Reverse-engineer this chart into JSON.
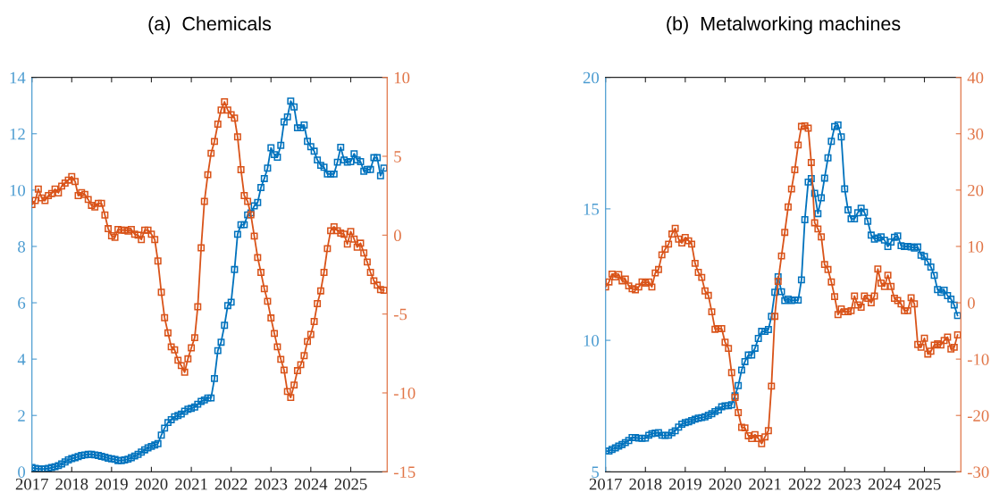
{
  "chart_data": [
    {
      "type": "line",
      "title": "(a)  Chemicals",
      "marker": "square",
      "line_style": "solid",
      "x": [
        "2017-01",
        "2017-02",
        "2017-03",
        "2017-04",
        "2017-05",
        "2017-06",
        "2017-07",
        "2017-08",
        "2017-09",
        "2017-10",
        "2017-11",
        "2017-12",
        "2018-01",
        "2018-02",
        "2018-03",
        "2018-04",
        "2018-05",
        "2018-06",
        "2018-07",
        "2018-08",
        "2018-09",
        "2018-10",
        "2018-11",
        "2018-12",
        "2019-01",
        "2019-02",
        "2019-03",
        "2019-04",
        "2019-05",
        "2019-06",
        "2019-07",
        "2019-08",
        "2019-09",
        "2019-10",
        "2019-11",
        "2019-12",
        "2020-01",
        "2020-02",
        "2020-03",
        "2020-04",
        "2020-05",
        "2020-06",
        "2020-07",
        "2020-08",
        "2020-09",
        "2020-10",
        "2020-11",
        "2020-12",
        "2021-01",
        "2021-02",
        "2021-03",
        "2021-04",
        "2021-05",
        "2021-06",
        "2021-07",
        "2021-08",
        "2021-09",
        "2021-10",
        "2021-11",
        "2021-12",
        "2022-01",
        "2022-02",
        "2022-03",
        "2022-04",
        "2022-05",
        "2022-06",
        "2022-07",
        "2022-08",
        "2022-09",
        "2022-10",
        "2022-11",
        "2022-12",
        "2023-01",
        "2023-02",
        "2023-03",
        "2023-04",
        "2023-05",
        "2023-06",
        "2023-07",
        "2023-08",
        "2023-09",
        "2023-10",
        "2023-11",
        "2023-12",
        "2024-01",
        "2024-02",
        "2024-03",
        "2024-04",
        "2024-05",
        "2024-06",
        "2024-07",
        "2024-08",
        "2024-09",
        "2024-10",
        "2024-11",
        "2024-12",
        "2025-01",
        "2025-02",
        "2025-03",
        "2025-04",
        "2025-05",
        "2025-06",
        "2025-07",
        "2025-08",
        "2025-09",
        "2025-10",
        "2025-11"
      ],
      "xlim": [
        "2017-01",
        "2025-12"
      ],
      "xticks": [
        "2017",
        "2018",
        "2019",
        "2020",
        "2021",
        "2022",
        "2023",
        "2024",
        "2025"
      ],
      "ylim": [
        0,
        14
      ],
      "yticks": [
        0,
        2,
        4,
        6,
        8,
        10,
        12,
        14
      ],
      "y2lim": [
        -15,
        10
      ],
      "y2ticks": [
        -15,
        -10,
        -5,
        0,
        5,
        10
      ],
      "series": [
        {
          "color": "#0072bd",
          "values": [
            0.15,
            0.12,
            0.1,
            0.1,
            0.1,
            0.12,
            0.15,
            0.18,
            0.22,
            0.28,
            0.35,
            0.42,
            0.47,
            0.5,
            0.54,
            0.58,
            0.6,
            0.62,
            0.62,
            0.6,
            0.58,
            0.55,
            0.52,
            0.48,
            0.46,
            0.44,
            0.4,
            0.4,
            0.42,
            0.45,
            0.5,
            0.56,
            0.62,
            0.7,
            0.78,
            0.85,
            0.9,
            0.95,
            1.0,
            1.3,
            1.55,
            1.75,
            1.85,
            1.95,
            2.0,
            2.05,
            2.15,
            2.22,
            2.25,
            2.3,
            2.4,
            2.5,
            2.55,
            2.62,
            2.62,
            3.31,
            4.3,
            4.6,
            5.2,
            5.9,
            6.02,
            7.18,
            8.43,
            8.77,
            8.77,
            9.12,
            9.19,
            9.44,
            9.56,
            10.09,
            10.41,
            10.78,
            11.5,
            11.26,
            11.17,
            11.59,
            12.42,
            12.6,
            13.16,
            12.95,
            12.21,
            12.21,
            12.31,
            11.73,
            11.54,
            11.38,
            11.07,
            10.88,
            10.81,
            10.57,
            10.57,
            10.57,
            10.99,
            11.52,
            11.07,
            10.99,
            11.01,
            11.29,
            11.07,
            11.01,
            10.67,
            10.73,
            10.73,
            11.15,
            11.15,
            10.51,
            10.78
          ]
        },
        {
          "color": "#d95319",
          "axis": "y2",
          "values": [
            1.94,
            2.2,
            2.92,
            2.36,
            2.2,
            2.51,
            2.64,
            2.92,
            2.68,
            3.11,
            3.3,
            3.49,
            3.71,
            3.4,
            2.51,
            2.7,
            2.58,
            2.26,
            1.89,
            1.79,
            2.02,
            2.02,
            1.28,
            0.41,
            -0.04,
            -0.14,
            0.36,
            0.32,
            0.32,
            0.25,
            0.36,
            0.06,
            0.0,
            -0.28,
            0.32,
            0.32,
            0.06,
            -0.28,
            -1.64,
            -3.62,
            -5.23,
            -6.19,
            -7.08,
            -7.27,
            -7.93,
            -8.27,
            -8.69,
            -7.84,
            -7.14,
            -6.5,
            -4.54,
            -0.8,
            2.14,
            3.83,
            5.19,
            5.94,
            7.04,
            7.93,
            8.45,
            7.93,
            7.64,
            7.42,
            6.23,
            4.15,
            2.51,
            2.14,
            1.29,
            -0.06,
            -1.42,
            -2.36,
            -3.4,
            -4.19,
            -5.25,
            -6.23,
            -7.08,
            -7.87,
            -8.55,
            -9.91,
            -10.29,
            -9.5,
            -8.59,
            -8.21,
            -7.64,
            -6.74,
            -6.29,
            -5.47,
            -4.34,
            -3.53,
            -2.36,
            -0.85,
            0.28,
            0.53,
            0.28,
            0.13,
            0.06,
            -0.57,
            0.23,
            -0.25,
            -0.76,
            -0.51,
            -1.13,
            -1.7,
            -2.36,
            -2.89,
            -3.17,
            -3.45,
            -3.49
          ]
        }
      ]
    },
    {
      "type": "line",
      "title": "(b)  Metalworking machines",
      "marker": "square",
      "line_style": "solid",
      "x": [
        "2017-01",
        "2017-02",
        "2017-03",
        "2017-04",
        "2017-05",
        "2017-06",
        "2017-07",
        "2017-08",
        "2017-09",
        "2017-10",
        "2017-11",
        "2017-12",
        "2018-01",
        "2018-02",
        "2018-03",
        "2018-04",
        "2018-05",
        "2018-06",
        "2018-07",
        "2018-08",
        "2018-09",
        "2018-10",
        "2018-11",
        "2018-12",
        "2019-01",
        "2019-02",
        "2019-03",
        "2019-04",
        "2019-05",
        "2019-06",
        "2019-07",
        "2019-08",
        "2019-09",
        "2019-10",
        "2019-11",
        "2019-12",
        "2020-01",
        "2020-02",
        "2020-03",
        "2020-04",
        "2020-05",
        "2020-06",
        "2020-07",
        "2020-08",
        "2020-09",
        "2020-10",
        "2020-11",
        "2020-12",
        "2021-01",
        "2021-02",
        "2021-03",
        "2021-04",
        "2021-05",
        "2021-06",
        "2021-07",
        "2021-08",
        "2021-09",
        "2021-10",
        "2021-11",
        "2021-12",
        "2022-01",
        "2022-02",
        "2022-03",
        "2022-04",
        "2022-05",
        "2022-06",
        "2022-07",
        "2022-08",
        "2022-09",
        "2022-10",
        "2022-11",
        "2022-12",
        "2023-01",
        "2023-02",
        "2023-03",
        "2023-04",
        "2023-05",
        "2023-06",
        "2023-07",
        "2023-08",
        "2023-09",
        "2023-10",
        "2023-11",
        "2023-12",
        "2024-01",
        "2024-02",
        "2024-03",
        "2024-04",
        "2024-05",
        "2024-06",
        "2024-07",
        "2024-08",
        "2024-09",
        "2024-10",
        "2024-11",
        "2024-12",
        "2025-01",
        "2025-02",
        "2025-03",
        "2025-04",
        "2025-05",
        "2025-06",
        "2025-07",
        "2025-08",
        "2025-09",
        "2025-10",
        "2025-11"
      ],
      "xlim": [
        "2017-01",
        "2025-12"
      ],
      "xticks": [
        "2017",
        "2018",
        "2019",
        "2020",
        "2021",
        "2022",
        "2023",
        "2024",
        "2025"
      ],
      "ylim": [
        5,
        20
      ],
      "yticks": [
        5,
        10,
        15,
        20
      ],
      "y2lim": [
        -30,
        40
      ],
      "y2ticks": [
        -30,
        -20,
        -10,
        0,
        10,
        20,
        30,
        40
      ],
      "series": [
        {
          "color": "#0072bd",
          "values": [
            5.79,
            5.79,
            5.85,
            5.91,
            5.98,
            6.04,
            6.11,
            6.19,
            6.3,
            6.3,
            6.28,
            6.27,
            6.28,
            6.39,
            6.45,
            6.47,
            6.49,
            6.39,
            6.38,
            6.39,
            6.49,
            6.56,
            6.7,
            6.81,
            6.87,
            6.9,
            6.95,
            7.0,
            7.04,
            7.06,
            7.09,
            7.15,
            7.21,
            7.29,
            7.35,
            7.47,
            7.51,
            7.51,
            7.55,
            7.89,
            8.28,
            8.87,
            9.19,
            9.44,
            9.44,
            9.7,
            10.07,
            10.34,
            10.34,
            10.41,
            10.91,
            11.83,
            12.42,
            11.85,
            11.51,
            11.57,
            11.51,
            11.53,
            11.53,
            12.3,
            14.59,
            16.02,
            16.15,
            15.59,
            14.82,
            15.42,
            16.17,
            16.94,
            17.57,
            18.13,
            18.19,
            17.74,
            15.76,
            14.96,
            14.62,
            14.62,
            14.85,
            15.02,
            14.87,
            14.53,
            14.0,
            13.85,
            13.89,
            13.94,
            13.81,
            13.57,
            13.74,
            13.92,
            13.97,
            13.6,
            13.57,
            13.57,
            13.55,
            13.51,
            13.55,
            13.24,
            13.19,
            12.98,
            12.79,
            12.47,
            11.93,
            11.83,
            11.91,
            11.7,
            11.57,
            11.34,
            10.94
          ]
        },
        {
          "color": "#d95319",
          "axis": "y2",
          "values": [
            2.8,
            3.7,
            5.1,
            4.6,
            5.0,
            3.9,
            4.2,
            3.0,
            2.5,
            2.3,
            2.8,
            3.7,
            3.5,
            3.7,
            2.8,
            5.3,
            5.9,
            8.5,
            9.5,
            10.4,
            12.2,
            13.2,
            11.3,
            10.6,
            11.6,
            11.0,
            10.4,
            7.0,
            5.4,
            4.5,
            2.1,
            1.3,
            -1.6,
            -4.7,
            -4.6,
            -4.6,
            -7.0,
            -8.1,
            -12.4,
            -16.8,
            -19.5,
            -22.1,
            -22.2,
            -23.6,
            -24.1,
            -23.4,
            -24.1,
            -25.0,
            -23.8,
            -22.7,
            -14.8,
            -2.4,
            3.8,
            8.3,
            12.5,
            17.0,
            20.2,
            23.6,
            28.0,
            31.3,
            31.4,
            31.0,
            24.9,
            14.2,
            13.1,
            11.7,
            6.8,
            5.9,
            3.7,
            1.1,
            -2.1,
            -1.1,
            -1.6,
            -1.6,
            -1.4,
            1.2,
            -0.4,
            -0.8,
            1.2,
            0.8,
            0.0,
            1.2,
            6.0,
            3.5,
            2.9,
            4.9,
            2.9,
            0.8,
            0.4,
            -0.2,
            -1.4,
            -1.4,
            0.9,
            -0.2,
            -7.4,
            -7.9,
            -6.3,
            -9.1,
            -8.6,
            -7.5,
            -7.3,
            -7.5,
            -6.7,
            -6.1,
            -8.2,
            -7.9,
            -5.7
          ]
        }
      ]
    }
  ]
}
